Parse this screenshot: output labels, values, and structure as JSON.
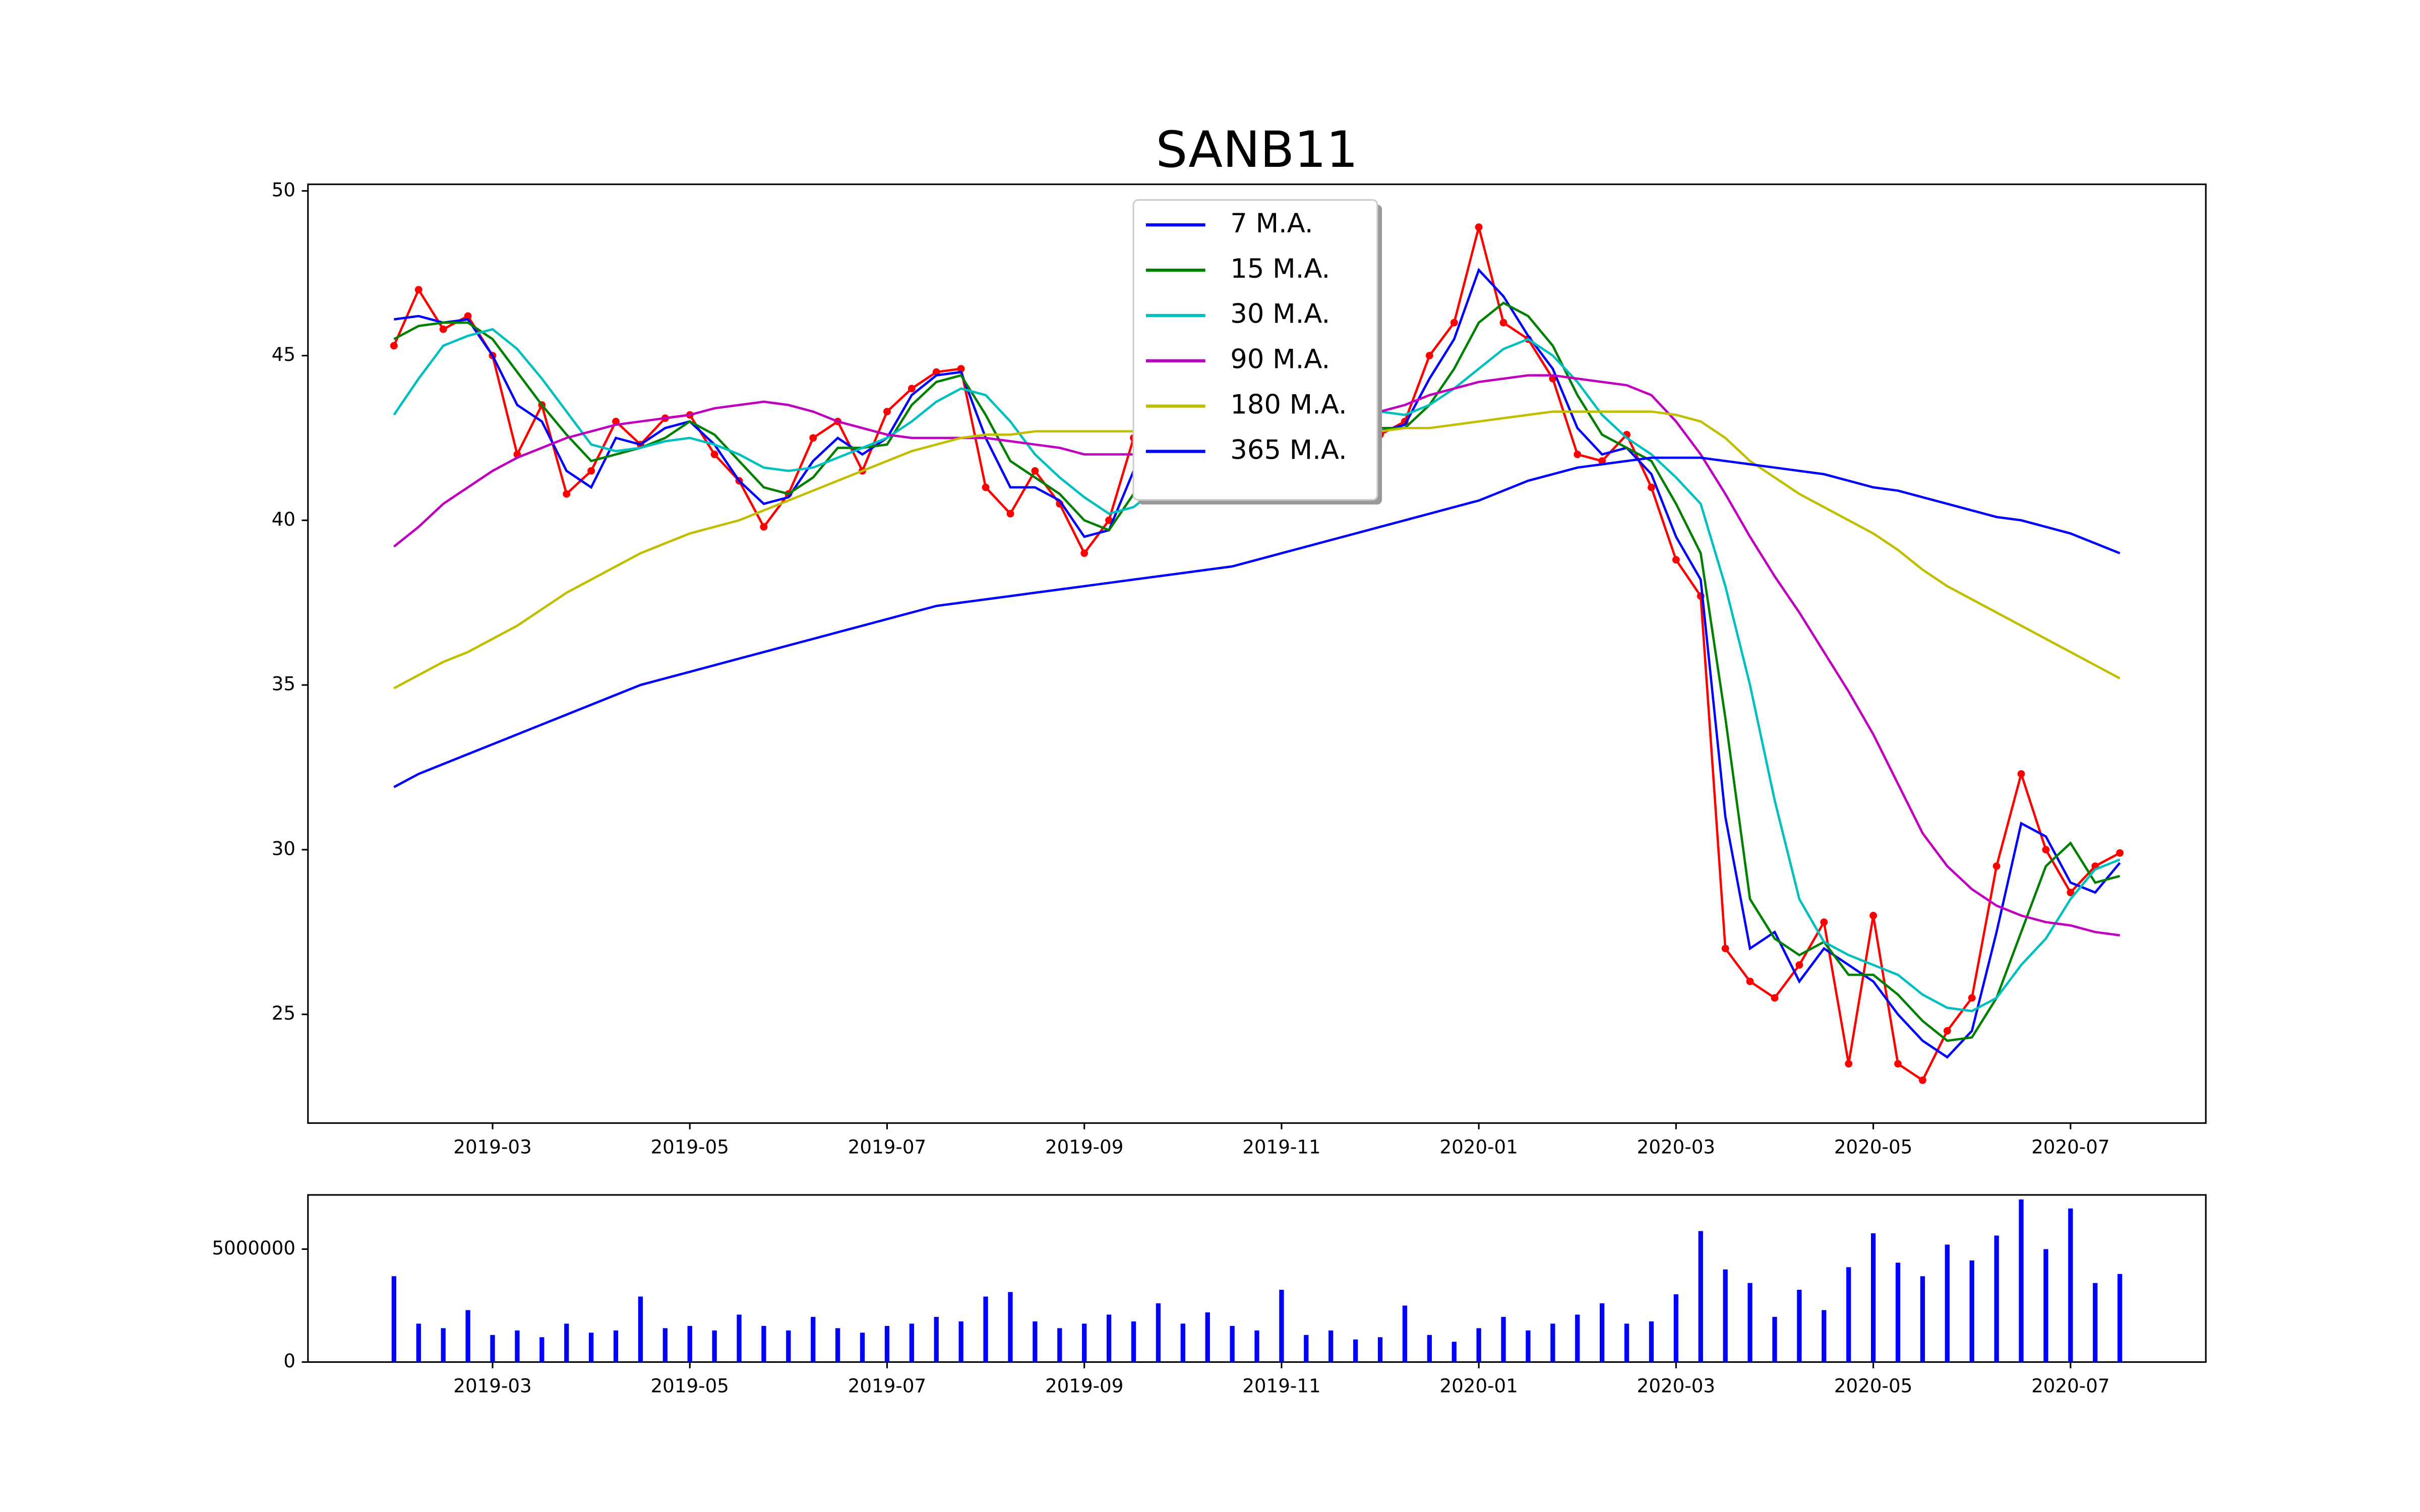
{
  "chart_data": [
    {
      "type": "line",
      "title": "SANB11",
      "x": [
        "2019-02",
        "2019-02",
        "2019-02",
        "2019-02",
        "2019-03",
        "2019-03",
        "2019-03",
        "2019-03",
        "2019-04",
        "2019-04",
        "2019-04",
        "2019-04",
        "2019-05",
        "2019-05",
        "2019-05",
        "2019-05",
        "2019-06",
        "2019-06",
        "2019-06",
        "2019-06",
        "2019-07",
        "2019-07",
        "2019-07",
        "2019-07",
        "2019-08",
        "2019-08",
        "2019-08",
        "2019-08",
        "2019-09",
        "2019-09",
        "2019-09",
        "2019-09",
        "2019-10",
        "2019-10",
        "2019-10",
        "2019-10",
        "2019-11",
        "2019-11",
        "2019-11",
        "2019-11",
        "2019-12",
        "2019-12",
        "2019-12",
        "2019-12",
        "2020-01",
        "2020-01",
        "2020-01",
        "2020-01",
        "2020-02",
        "2020-02",
        "2020-02",
        "2020-02",
        "2020-03",
        "2020-03",
        "2020-03",
        "2020-03",
        "2020-04",
        "2020-04",
        "2020-04",
        "2020-04",
        "2020-05",
        "2020-05",
        "2020-05",
        "2020-05",
        "2020-06",
        "2020-06",
        "2020-06",
        "2020-06",
        "2020-07",
        "2020-07",
        "2020-07"
      ],
      "xticks": [
        "2019-03",
        "2019-05",
        "2019-07",
        "2019-09",
        "2019-11",
        "2020-01",
        "2020-03",
        "2020-05",
        "2020-07"
      ],
      "ylim": [
        21.7,
        50.2
      ],
      "yticks": [
        25,
        30,
        35,
        40,
        45,
        50
      ],
      "legend": "upper center",
      "series": [
        {
          "color": "#ff0000",
          "marker": "o",
          "values": [
            45.3,
            47.0,
            45.8,
            46.2,
            45.0,
            42.0,
            43.5,
            40.8,
            41.5,
            43.0,
            42.3,
            43.1,
            43.2,
            42.0,
            41.2,
            39.8,
            40.8,
            42.5,
            43.0,
            41.5,
            43.3,
            44.0,
            44.5,
            44.6,
            41.0,
            40.2,
            41.5,
            40.5,
            39.0,
            40.0,
            42.5,
            42.8,
            42.0,
            42.5,
            42.8,
            43.0,
            43.0,
            43.5,
            43.2,
            42.8,
            42.6,
            43.0,
            45.0,
            46.0,
            48.9,
            46.0,
            45.5,
            44.3,
            42.0,
            41.8,
            42.6,
            41.0,
            38.8,
            37.7,
            27.0,
            26.0,
            25.5,
            26.5,
            27.8,
            23.5,
            28.0,
            23.5,
            23.0,
            24.5,
            25.5,
            29.5,
            32.3,
            30.0,
            28.7,
            29.5,
            29.9
          ]
        },
        {
          "name": "7 M.A.",
          "color": "#0000ff",
          "values": [
            46.1,
            46.2,
            46.0,
            46.1,
            45.0,
            43.5,
            43.0,
            41.5,
            41.0,
            42.5,
            42.3,
            42.8,
            43.0,
            42.3,
            41.2,
            40.5,
            40.7,
            41.8,
            42.5,
            42.0,
            42.5,
            43.8,
            44.4,
            44.5,
            42.5,
            41.0,
            41.0,
            40.6,
            39.5,
            39.7,
            41.5,
            42.5,
            42.2,
            42.4,
            42.7,
            42.9,
            43.0,
            43.3,
            43.2,
            42.9,
            42.7,
            42.9,
            44.3,
            45.5,
            47.6,
            46.8,
            45.6,
            44.6,
            42.8,
            42.0,
            42.2,
            41.4,
            39.5,
            38.2,
            31.0,
            27.0,
            27.5,
            26.0,
            27.0,
            26.5,
            26.0,
            25.0,
            24.2,
            23.7,
            24.5,
            27.5,
            30.8,
            30.4,
            29.0,
            28.7,
            29.6
          ]
        },
        {
          "name": "15 M.A.",
          "color": "#008000",
          "values": [
            45.5,
            45.9,
            46.0,
            46.0,
            45.5,
            44.5,
            43.5,
            42.6,
            41.8,
            42.0,
            42.2,
            42.5,
            43.0,
            42.6,
            41.8,
            41.0,
            40.8,
            41.3,
            42.2,
            42.2,
            42.3,
            43.5,
            44.2,
            44.4,
            43.2,
            41.8,
            41.3,
            40.8,
            40.0,
            39.7,
            40.8,
            41.8,
            42.0,
            42.3,
            42.6,
            42.8,
            42.9,
            43.2,
            43.2,
            43.0,
            42.8,
            42.8,
            43.5,
            44.6,
            46.0,
            46.6,
            46.2,
            45.3,
            43.8,
            42.6,
            42.2,
            41.8,
            40.5,
            39.0,
            34.0,
            28.5,
            27.3,
            26.8,
            27.2,
            26.2,
            26.2,
            25.6,
            24.8,
            24.2,
            24.3,
            25.5,
            27.5,
            29.5,
            30.2,
            29.0,
            29.2
          ]
        },
        {
          "name": "30 M.A.",
          "color": "#00bfbf",
          "values": [
            43.2,
            44.3,
            45.3,
            45.6,
            45.8,
            45.2,
            44.3,
            43.3,
            42.3,
            42.1,
            42.2,
            42.4,
            42.5,
            42.3,
            42.0,
            41.6,
            41.5,
            41.6,
            41.9,
            42.2,
            42.5,
            43.0,
            43.6,
            44.0,
            43.8,
            43.0,
            42.0,
            41.3,
            40.7,
            40.2,
            40.4,
            41.0,
            41.5,
            42.0,
            42.5,
            42.8,
            43.0,
            43.3,
            43.5,
            43.4,
            43.3,
            43.2,
            43.5,
            44.0,
            44.6,
            45.2,
            45.5,
            45.0,
            44.2,
            43.2,
            42.5,
            42.0,
            41.3,
            40.5,
            38.0,
            35.0,
            31.5,
            28.5,
            27.2,
            26.8,
            26.5,
            26.2,
            25.6,
            25.2,
            25.1,
            25.5,
            26.5,
            27.3,
            28.5,
            29.4,
            29.7
          ]
        },
        {
          "name": "90 M.A.",
          "color": "#bf00bf",
          "values": [
            39.2,
            39.8,
            40.5,
            41.0,
            41.5,
            41.9,
            42.2,
            42.5,
            42.7,
            42.9,
            43.0,
            43.1,
            43.2,
            43.4,
            43.5,
            43.6,
            43.5,
            43.3,
            43.0,
            42.8,
            42.6,
            42.5,
            42.5,
            42.5,
            42.5,
            42.4,
            42.3,
            42.2,
            42.0,
            42.0,
            42.0,
            42.1,
            42.2,
            42.3,
            42.5,
            42.6,
            42.8,
            42.9,
            43.0,
            43.1,
            43.3,
            43.5,
            43.8,
            44.0,
            44.2,
            44.3,
            44.4,
            44.4,
            44.3,
            44.2,
            44.1,
            43.8,
            43.0,
            42.0,
            40.8,
            39.5,
            38.3,
            37.2,
            36.0,
            34.8,
            33.5,
            32.0,
            30.5,
            29.5,
            28.8,
            28.3,
            28.0,
            27.8,
            27.7,
            27.5,
            27.4
          ]
        },
        {
          "name": "180 M.A.",
          "color": "#bfbf00",
          "values": [
            34.9,
            35.3,
            35.7,
            36.0,
            36.4,
            36.8,
            37.3,
            37.8,
            38.2,
            38.6,
            39.0,
            39.3,
            39.6,
            39.8,
            40.0,
            40.3,
            40.6,
            40.9,
            41.2,
            41.5,
            41.8,
            42.1,
            42.3,
            42.5,
            42.6,
            42.6,
            42.7,
            42.7,
            42.7,
            42.7,
            42.7,
            42.7,
            42.7,
            42.7,
            42.7,
            42.7,
            42.7,
            42.7,
            42.7,
            42.7,
            42.7,
            42.8,
            42.8,
            42.9,
            43.0,
            43.1,
            43.2,
            43.3,
            43.3,
            43.3,
            43.3,
            43.3,
            43.2,
            43.0,
            42.5,
            41.8,
            41.3,
            40.8,
            40.4,
            40.0,
            39.6,
            39.1,
            38.5,
            38.0,
            37.6,
            37.2,
            36.8,
            36.4,
            36.0,
            35.6,
            35.2
          ]
        },
        {
          "name": "365 M.A.",
          "color": "#0000ff",
          "values": [
            31.9,
            32.3,
            32.6,
            32.9,
            33.2,
            33.5,
            33.8,
            34.1,
            34.4,
            34.7,
            35.0,
            35.2,
            35.4,
            35.6,
            35.8,
            36.0,
            36.2,
            36.4,
            36.6,
            36.8,
            37.0,
            37.2,
            37.4,
            37.5,
            37.6,
            37.7,
            37.8,
            37.9,
            38.0,
            38.1,
            38.2,
            38.3,
            38.4,
            38.5,
            38.6,
            38.8,
            39.0,
            39.2,
            39.4,
            39.6,
            39.8,
            40.0,
            40.2,
            40.4,
            40.6,
            40.9,
            41.2,
            41.4,
            41.6,
            41.7,
            41.8,
            41.9,
            41.9,
            41.9,
            41.8,
            41.7,
            41.6,
            41.5,
            41.4,
            41.2,
            41.0,
            40.9,
            40.7,
            40.5,
            40.3,
            40.1,
            40.0,
            39.8,
            39.6,
            39.3,
            39.0
          ]
        }
      ]
    },
    {
      "type": "bar",
      "color": "#0000ff",
      "x": [
        "2019-02",
        "2019-02",
        "2019-02",
        "2019-02",
        "2019-03",
        "2019-03",
        "2019-03",
        "2019-03",
        "2019-04",
        "2019-04",
        "2019-04",
        "2019-04",
        "2019-05",
        "2019-05",
        "2019-05",
        "2019-05",
        "2019-06",
        "2019-06",
        "2019-06",
        "2019-06",
        "2019-07",
        "2019-07",
        "2019-07",
        "2019-07",
        "2019-08",
        "2019-08",
        "2019-08",
        "2019-08",
        "2019-09",
        "2019-09",
        "2019-09",
        "2019-09",
        "2019-10",
        "2019-10",
        "2019-10",
        "2019-10",
        "2019-11",
        "2019-11",
        "2019-11",
        "2019-11",
        "2019-12",
        "2019-12",
        "2019-12",
        "2019-12",
        "2020-01",
        "2020-01",
        "2020-01",
        "2020-01",
        "2020-02",
        "2020-02",
        "2020-02",
        "2020-02",
        "2020-03",
        "2020-03",
        "2020-03",
        "2020-03",
        "2020-04",
        "2020-04",
        "2020-04",
        "2020-04",
        "2020-05",
        "2020-05",
        "2020-05",
        "2020-05",
        "2020-06",
        "2020-06",
        "2020-06",
        "2020-06",
        "2020-07",
        "2020-07",
        "2020-07"
      ],
      "xticks": [
        "2019-03",
        "2019-05",
        "2019-07",
        "2019-09",
        "2019-11",
        "2020-01",
        "2020-03",
        "2020-05",
        "2020-07"
      ],
      "ylim": [
        0,
        7400000
      ],
      "yticks": [
        0,
        5000000
      ],
      "values": [
        3800000,
        1700000,
        1500000,
        2300000,
        1200000,
        1400000,
        1100000,
        1700000,
        1300000,
        1400000,
        2900000,
        1500000,
        1600000,
        1400000,
        2100000,
        1600000,
        1400000,
        2000000,
        1500000,
        1300000,
        1600000,
        1700000,
        2000000,
        1800000,
        2900000,
        3100000,
        1800000,
        1500000,
        1700000,
        2100000,
        1800000,
        2600000,
        1700000,
        2200000,
        1600000,
        1400000,
        3200000,
        1200000,
        1400000,
        1000000,
        1100000,
        2500000,
        1200000,
        900000,
        1500000,
        2000000,
        1400000,
        1700000,
        2100000,
        2600000,
        1700000,
        1800000,
        3000000,
        5800000,
        4100000,
        3500000,
        2000000,
        3200000,
        2300000,
        4200000,
        5700000,
        4400000,
        3800000,
        5200000,
        4500000,
        5600000,
        7200000,
        5000000,
        6800000,
        3500000,
        3900000
      ]
    }
  ]
}
